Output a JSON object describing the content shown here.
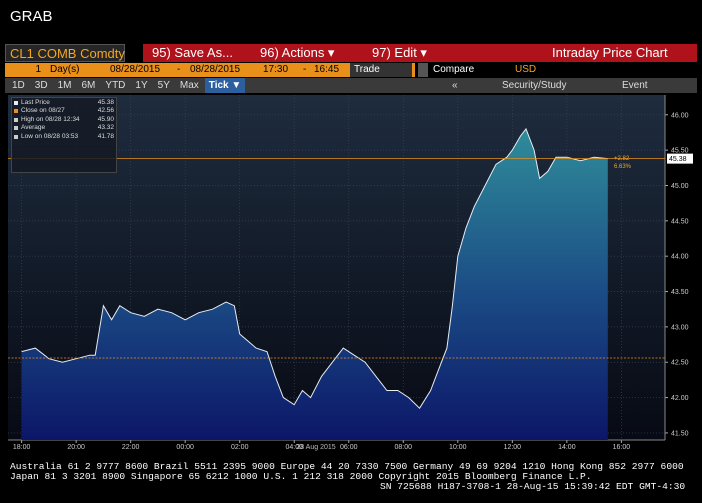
{
  "header": {
    "title": "GRAB"
  },
  "toolbar": {
    "ticker": "CL1 COMB Comdty",
    "buttons": [
      "95) Save As...",
      "96) Actions ▾",
      "97) Edit ▾"
    ],
    "window_title": "Intraday Price Chart"
  },
  "settings": {
    "period": "1",
    "unit": "Day(s)",
    "start_date": "08/28/2015",
    "dash1": "-",
    "end_date": "08/28/2015",
    "start_time": "17:30",
    "dash2": "-",
    "end_time": "16:45",
    "mode": "Trade",
    "compare": "Compare",
    "currency": "USD"
  },
  "tabs": [
    "1D",
    "3D",
    "1M",
    "6M",
    "YTD",
    "1Y",
    "5Y",
    "Max",
    "Tick ▼"
  ],
  "study_bar": {
    "back": "«",
    "study": "Security/Study",
    "event": "Event"
  },
  "chart_data": {
    "type": "area",
    "date_label": "28 Aug 2015",
    "x": [
      0,
      0.5,
      1,
      1.5,
      2,
      2.5,
      2.7,
      3,
      3.3,
      3.6,
      4,
      4.5,
      5,
      5.5,
      6,
      6.5,
      7,
      7.5,
      7.8,
      8,
      8.3,
      8.6,
      9,
      9.3,
      9.6,
      10,
      10.3,
      10.6,
      11,
      11.4,
      11.8,
      12.2,
      12.6,
      13,
      13.4,
      13.8,
      14.2,
      14.6,
      15,
      15.3,
      15.6,
      15.8,
      16,
      16.3,
      16.6,
      17,
      17.4,
      17.8,
      18,
      18.3,
      18.5,
      18.8,
      19,
      19.3,
      19.6,
      20,
      20.5,
      21,
      21.5
    ],
    "series": [
      {
        "name": "Last Price",
        "color": "#e6ecf2",
        "values": [
          42.65,
          42.7,
          42.55,
          42.5,
          42.55,
          42.6,
          42.6,
          43.3,
          43.1,
          43.3,
          43.2,
          43.15,
          43.25,
          43.2,
          43.1,
          43.2,
          43.25,
          43.35,
          43.3,
          42.9,
          42.8,
          42.7,
          42.65,
          42.3,
          42.0,
          41.9,
          42.1,
          42.0,
          42.3,
          42.5,
          42.7,
          42.6,
          42.5,
          42.3,
          42.1,
          42.1,
          42.0,
          41.85,
          42.1,
          42.4,
          42.7,
          43.3,
          44.0,
          44.4,
          44.7,
          45.0,
          45.3,
          45.4,
          45.5,
          45.7,
          45.8,
          45.5,
          45.1,
          45.2,
          45.4,
          45.4,
          45.35,
          45.4,
          45.38
        ]
      }
    ],
    "xlim": [
      -0.5,
      23.6
    ],
    "xticks": [
      {
        "value": 0,
        "label": "18:00"
      },
      {
        "value": 2,
        "label": "20:00"
      },
      {
        "value": 4,
        "label": "22:00"
      },
      {
        "value": 6,
        "label": "00:00"
      },
      {
        "value": 8,
        "label": "02:00"
      },
      {
        "value": 10,
        "label": "04:00"
      },
      {
        "value": 12,
        "label": "06:00"
      },
      {
        "value": 14,
        "label": "08:00"
      },
      {
        "value": 16,
        "label": "10:00"
      },
      {
        "value": 18,
        "label": "12:00"
      },
      {
        "value": 20,
        "label": "14:00"
      },
      {
        "value": 22,
        "label": "16:00"
      }
    ],
    "ylim": [
      41.4,
      46.28
    ],
    "yticks": [
      {
        "value": 41.5,
        "label": "41.50"
      },
      {
        "value": 42,
        "label": "42.00"
      },
      {
        "value": 42.5,
        "label": "42.50"
      },
      {
        "value": 43,
        "label": "43.00"
      },
      {
        "value": 43.5,
        "label": "43.50"
      },
      {
        "value": 44,
        "label": "44.00"
      },
      {
        "value": 44.5,
        "label": "44.50"
      },
      {
        "value": 45,
        "label": "45.00"
      },
      {
        "value": 45.5,
        "label": "45.50"
      },
      {
        "value": 46,
        "label": "46.00"
      }
    ],
    "grid": true,
    "legend": [
      {
        "label": "Last Price",
        "value": 45.38
      },
      {
        "label": "Close on 08/27",
        "value": 42.56
      },
      {
        "label": "High on 08/28 12:34",
        "value": {
          "value": 45.9,
          "label": "45.90"
        }
      },
      {
        "label": "Average",
        "value": 43.32
      },
      {
        "label": "Low on 08/28 03:53",
        "value": 41.78
      }
    ],
    "change": "+2.82",
    "change_pct": "6.63%"
  },
  "footer": [
    "Australia 61 2 9777 8600 Brazil 5511 2395 9000 Europe 44 20 7330 7500 Germany 49 69 9204 1210 Hong Kong 852 2977 6000",
    "Japan 81 3 3201 8900         Singapore 65 6212 1000         U.S. 1 212 318 2000          Copyright 2015 Bloomberg Finance L.P.",
    "SN 725688 H187-3708-1 28-Aug-15 15:39:42 EDT  GMT-4:30"
  ]
}
